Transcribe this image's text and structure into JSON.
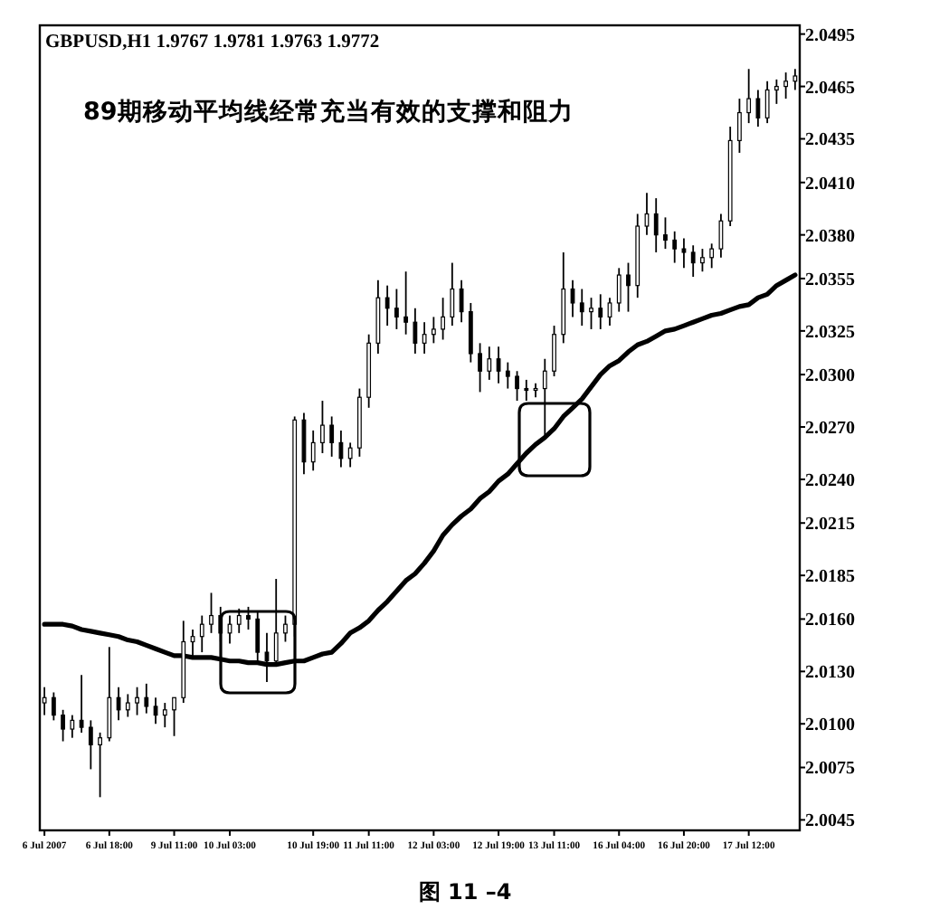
{
  "chart_data": {
    "type": "candlestick",
    "title": "GBPUSD,H1 1.9767 1.9781 1.9763 1.9772",
    "annotations": [
      "89期移动平均线经常充当有效的支撑和阻力",
      "图 11 –4"
    ],
    "categories": [
      "6 Jul 2007",
      null,
      null,
      null,
      null,
      null,
      null,
      "6 Jul 18:00",
      null,
      null,
      null,
      null,
      null,
      null,
      "9 Jul 11:00",
      null,
      null,
      null,
      null,
      null,
      "10 Jul 03:00",
      null,
      null,
      null,
      null,
      null,
      null,
      null,
      null,
      "10 Jul 19:00",
      null,
      null,
      null,
      null,
      null,
      "11 Jul 11:00",
      null,
      null,
      null,
      null,
      null,
      null,
      "12 Jul 03:00",
      null,
      null,
      null,
      null,
      null,
      null,
      "12 Jul 19:00",
      null,
      null,
      null,
      null,
      null,
      "13 Jul 11:00",
      null,
      null,
      null,
      null,
      null,
      null,
      "16 Jul 04:00",
      null,
      null,
      null,
      null,
      null,
      null,
      "16 Jul 20:00",
      null,
      null,
      null,
      null,
      null,
      null,
      "17 Jul 12:00",
      null,
      null,
      null,
      null,
      null
    ],
    "ohlc": [
      [
        2.0112,
        2.0121,
        2.0105,
        2.0115
      ],
      [
        2.0115,
        2.0118,
        2.0102,
        2.0105
      ],
      [
        2.0105,
        2.0108,
        2.009,
        2.0097
      ],
      [
        2.0097,
        2.0105,
        2.0092,
        2.0102
      ],
      [
        2.0102,
        2.0128,
        2.0095,
        2.0098
      ],
      [
        2.0098,
        2.0102,
        2.0074,
        2.0088
      ],
      [
        2.0088,
        2.0095,
        2.0058,
        2.0092
      ],
      [
        2.0092,
        2.0144,
        2.009,
        2.0115
      ],
      [
        2.0115,
        2.0121,
        2.0102,
        2.0108
      ],
      [
        2.0108,
        2.0117,
        2.0104,
        2.0112
      ],
      [
        2.0112,
        2.0121,
        2.0105,
        2.0115
      ],
      [
        2.0115,
        2.0123,
        2.0106,
        2.011
      ],
      [
        2.011,
        2.0115,
        2.01,
        2.0105
      ],
      [
        2.0105,
        2.0112,
        2.0098,
        2.0108
      ],
      [
        2.0108,
        2.0115,
        2.0093,
        2.0115
      ],
      [
        2.0115,
        2.0159,
        2.0112,
        2.0147
      ],
      [
        2.0147,
        2.0154,
        2.0139,
        2.015
      ],
      [
        2.015,
        2.0162,
        2.0141,
        2.0157
      ],
      [
        2.0157,
        2.0175,
        2.0152,
        2.0162
      ],
      [
        2.0162,
        2.0167,
        2.0147,
        2.0152
      ],
      [
        2.0152,
        2.0162,
        2.0146,
        2.0157
      ],
      [
        2.0157,
        2.0166,
        2.0152,
        2.0162
      ],
      [
        2.0162,
        2.0167,
        2.0154,
        2.016
      ],
      [
        2.016,
        2.0164,
        2.0136,
        2.0141
      ],
      [
        2.0141,
        2.0152,
        2.0124,
        2.0136
      ],
      [
        2.0136,
        2.0183,
        2.0133,
        2.0152
      ],
      [
        2.0152,
        2.0162,
        2.0147,
        2.0157
      ],
      [
        2.0157,
        2.0276,
        2.015,
        2.0274
      ],
      [
        2.0274,
        2.0278,
        2.0243,
        2.025
      ],
      [
        2.025,
        2.0268,
        2.0245,
        2.0261
      ],
      [
        2.0261,
        2.0285,
        2.0255,
        2.0271
      ],
      [
        2.0271,
        2.0276,
        2.0253,
        2.0261
      ],
      [
        2.0261,
        2.0268,
        2.0247,
        2.0252
      ],
      [
        2.0252,
        2.0261,
        2.0247,
        2.0258
      ],
      [
        2.0258,
        2.0292,
        2.0253,
        2.0287
      ],
      [
        2.0287,
        2.0323,
        2.0281,
        2.0318
      ],
      [
        2.0318,
        2.0354,
        2.0312,
        2.0344
      ],
      [
        2.0344,
        2.0351,
        2.0328,
        2.0338
      ],
      [
        2.0338,
        2.0349,
        2.0326,
        2.0333
      ],
      [
        2.0333,
        2.0359,
        2.0323,
        2.033
      ],
      [
        2.033,
        2.0338,
        2.0312,
        2.0318
      ],
      [
        2.0318,
        2.033,
        2.0312,
        2.0323
      ],
      [
        2.0323,
        2.0333,
        2.0318,
        2.0326
      ],
      [
        2.0326,
        2.0344,
        2.032,
        2.0333
      ],
      [
        2.0333,
        2.0364,
        2.0328,
        2.0349
      ],
      [
        2.0349,
        2.0354,
        2.033,
        2.0336
      ],
      [
        2.0336,
        2.0341,
        2.0307,
        2.0312
      ],
      [
        2.0312,
        2.0318,
        2.029,
        2.0302
      ],
      [
        2.0302,
        2.0316,
        2.0297,
        2.0309
      ],
      [
        2.0309,
        2.0316,
        2.0295,
        2.0302
      ],
      [
        2.0302,
        2.0307,
        2.0292,
        2.0299
      ],
      [
        2.0299,
        2.0302,
        2.0285,
        2.0292
      ],
      [
        2.0292,
        2.0297,
        2.0285,
        2.0291
      ],
      [
        2.0291,
        2.0295,
        2.0287,
        2.0292
      ],
      [
        2.0292,
        2.0309,
        2.0264,
        2.0302
      ],
      [
        2.0302,
        2.0328,
        2.0299,
        2.0323
      ],
      [
        2.0323,
        2.037,
        2.0318,
        2.0349
      ],
      [
        2.0349,
        2.0354,
        2.0333,
        2.0341
      ],
      [
        2.0341,
        2.0349,
        2.0328,
        2.0336
      ],
      [
        2.0336,
        2.0344,
        2.0326,
        2.0338
      ],
      [
        2.0338,
        2.0346,
        2.0326,
        2.0333
      ],
      [
        2.0333,
        2.0344,
        2.0328,
        2.0341
      ],
      [
        2.0341,
        2.0361,
        2.0336,
        2.0357
      ],
      [
        2.0357,
        2.0364,
        2.0336,
        2.0351
      ],
      [
        2.0351,
        2.0392,
        2.0344,
        2.0385
      ],
      [
        2.0385,
        2.0404,
        2.038,
        2.0392
      ],
      [
        2.0392,
        2.0401,
        2.037,
        2.038
      ],
      [
        2.038,
        2.039,
        2.0372,
        2.0377
      ],
      [
        2.0377,
        2.0382,
        2.0364,
        2.0372
      ],
      [
        2.0372,
        2.0378,
        2.0361,
        2.037
      ],
      [
        2.037,
        2.0374,
        2.0356,
        2.0364
      ],
      [
        2.0364,
        2.0372,
        2.0359,
        2.0367
      ],
      [
        2.0367,
        2.0375,
        2.0361,
        2.0372
      ],
      [
        2.0372,
        2.0392,
        2.0367,
        2.0388
      ],
      [
        2.0388,
        2.0442,
        2.0385,
        2.0434
      ],
      [
        2.0434,
        2.0458,
        2.0427,
        2.045
      ],
      [
        2.045,
        2.0475,
        2.0444,
        2.0458
      ],
      [
        2.0458,
        2.0463,
        2.0442,
        2.0447
      ],
      [
        2.0447,
        2.0468,
        2.0444,
        2.0463
      ],
      [
        2.0463,
        2.0469,
        2.0455,
        2.0465
      ],
      [
        2.0465,
        2.0473,
        2.0458,
        2.0468
      ],
      [
        2.0468,
        2.0475,
        2.0463,
        2.0471
      ]
    ],
    "series": [
      {
        "type": "line",
        "color": "#000000",
        "values": [
          2.0157,
          2.0157,
          2.0157,
          2.0156,
          2.0154,
          2.0153,
          2.0152,
          2.0151,
          2.015,
          2.0148,
          2.0147,
          2.0145,
          2.0143,
          2.0141,
          2.0139,
          2.0139,
          2.0138,
          2.0138,
          2.0138,
          2.0137,
          2.0136,
          2.0136,
          2.0135,
          2.0135,
          2.0134,
          2.0134,
          2.0135,
          2.0136,
          2.0136,
          2.0138,
          2.014,
          2.0141,
          2.0146,
          2.0152,
          2.0155,
          2.0159,
          2.0165,
          2.017,
          2.0176,
          2.0182,
          2.0186,
          2.0192,
          2.0199,
          2.0208,
          2.0214,
          2.0219,
          2.0223,
          2.0229,
          2.0233,
          2.0239,
          2.0243,
          2.0249,
          2.0255,
          2.026,
          2.0264,
          2.0269,
          2.0276,
          2.0281,
          2.0286,
          2.0293,
          2.03,
          2.0305,
          2.0308,
          2.0313,
          2.0317,
          2.0319,
          2.0322,
          2.0325,
          2.0326,
          2.0328,
          2.033,
          2.0332,
          2.0334,
          2.0335,
          2.0337,
          2.0339,
          2.034,
          2.0344,
          2.0346,
          2.0351,
          2.0354,
          2.0357
        ]
      }
    ],
    "ylim": [
      2.0039,
      2.05
    ],
    "yticks": [
      2.0495,
      2.0465,
      2.0435,
      {
        "value": 2.041,
        "label": "2.0410"
      },
      {
        "value": 2.038,
        "label": "2.0380"
      },
      2.0355,
      2.0325,
      {
        "value": 2.03,
        "label": "2.0300"
      },
      {
        "value": 2.027,
        "label": "2.0270"
      },
      {
        "value": 2.024,
        "label": "2.0240"
      },
      2.0215,
      2.0185,
      {
        "value": 2.016,
        "label": "2.0160"
      },
      {
        "value": 2.013,
        "label": "2.0130"
      },
      {
        "value": 2.01,
        "label": "2.0100"
      },
      2.0075,
      2.0045
    ]
  }
}
